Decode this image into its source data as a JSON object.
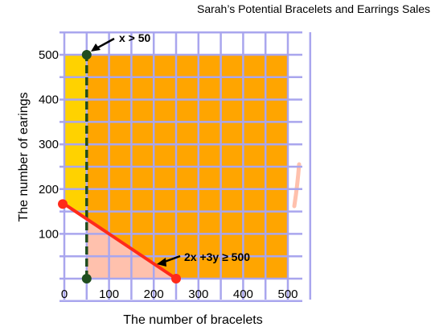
{
  "chart_data": {
    "type": "line",
    "title": "Sarah’s Potential Bracelets and Earrings Sales",
    "xlabel": "The number of bracelets",
    "ylabel": "The number of earings",
    "xlim": [
      0,
      500
    ],
    "ylim": [
      0,
      500
    ],
    "x_ticks": [
      0,
      100,
      200,
      300,
      400,
      500
    ],
    "y_ticks": [
      100,
      200,
      300,
      400,
      500
    ],
    "grid": true,
    "series": [
      {
        "name": "2x +3y ≥ 500",
        "style": "solid",
        "color": "#ff2a1a",
        "x": [
          0,
          250
        ],
        "y": [
          166.7,
          0
        ]
      },
      {
        "name": "x > 50",
        "style": "dashed",
        "color": "#1f4d1f",
        "x": [
          50,
          50
        ],
        "y": [
          0,
          500
        ]
      }
    ],
    "annotations": [
      {
        "text": "x > 50",
        "x": 50,
        "y": 500
      },
      {
        "text": "2x +3y ≥ 500",
        "x": 230,
        "y": 50
      }
    ],
    "colors": {
      "grid": "#a9a6ee",
      "yellow_region": "#ffd200",
      "orange_region": "#ffa500",
      "pink_region": "#ffc1ad",
      "line_red": "#ff2a1a",
      "line_green": "#1f4d1f"
    }
  }
}
